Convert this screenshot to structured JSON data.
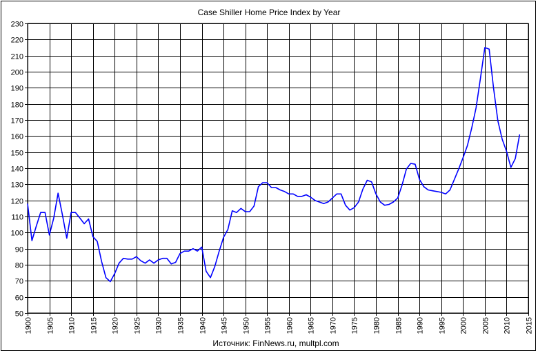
{
  "chart_data": {
    "type": "line",
    "title": "Case Shiller Home Price Index  by Year",
    "source": "Источник: FinNews.ru, multpl.com",
    "xlabel": "",
    "ylabel": "",
    "xlim": [
      1900,
      2015
    ],
    "ylim": [
      50,
      230
    ],
    "x_ticks": [
      1900,
      1905,
      1910,
      1915,
      1920,
      1925,
      1930,
      1935,
      1940,
      1945,
      1950,
      1955,
      1960,
      1965,
      1970,
      1975,
      1980,
      1985,
      1990,
      1995,
      2000,
      2005,
      2010,
      2015
    ],
    "y_ticks": [
      50,
      60,
      70,
      80,
      90,
      100,
      110,
      120,
      130,
      140,
      150,
      160,
      170,
      180,
      190,
      200,
      210,
      220,
      230
    ],
    "grid": true,
    "legend": "none",
    "series": [
      {
        "color": "#0000ff",
        "x": [
          1900,
          1901,
          1902,
          1903,
          1904,
          1905,
          1906,
          1907,
          1908,
          1909,
          1910,
          1911,
          1912,
          1913,
          1914,
          1915,
          1916,
          1917,
          1918,
          1919,
          1920,
          1921,
          1922,
          1923,
          1924,
          1925,
          1926,
          1927,
          1928,
          1929,
          1930,
          1931,
          1932,
          1933,
          1934,
          1935,
          1936,
          1937,
          1938,
          1939,
          1940,
          1941,
          1942,
          1943,
          1944,
          1945,
          1946,
          1947,
          1948,
          1949,
          1950,
          1951,
          1952,
          1953,
          1954,
          1955,
          1956,
          1957,
          1958,
          1959,
          1960,
          1961,
          1962,
          1963,
          1964,
          1965,
          1966,
          1967,
          1968,
          1969,
          1970,
          1971,
          1972,
          1973,
          1974,
          1975,
          1976,
          1977,
          1978,
          1979,
          1980,
          1981,
          1982,
          1983,
          1984,
          1985,
          1986,
          1987,
          1988,
          1989,
          1990,
          1991,
          1992,
          1993,
          1994,
          1995,
          1996,
          1997,
          1998,
          1999,
          2000,
          2001,
          2002,
          2003,
          2004,
          2005,
          2006,
          2007,
          2008,
          2009,
          2010,
          2011,
          2012,
          2013
        ],
        "y": [
          118,
          95,
          104,
          112.5,
          112.5,
          98.5,
          109,
          124.5,
          111,
          96.5,
          112.5,
          112.5,
          109,
          105.5,
          108.5,
          97.5,
          94.5,
          82,
          72,
          69.5,
          74.5,
          81,
          84,
          83.5,
          83.5,
          85,
          82.5,
          81,
          83,
          81,
          83,
          84,
          84,
          80.5,
          81.5,
          87,
          88.5,
          88.5,
          90,
          88.5,
          91,
          76,
          72,
          79,
          88.5,
          97,
          102,
          113.5,
          112.5,
          115,
          113,
          113,
          116.5,
          128.5,
          131,
          131,
          128,
          128,
          126.5,
          125.5,
          124,
          124,
          122.5,
          122.5,
          123.5,
          122,
          120,
          119,
          118,
          119,
          121.5,
          124,
          124,
          117,
          114,
          115.5,
          119,
          127,
          132.5,
          131.5,
          124,
          119,
          117,
          117.5,
          119,
          121.5,
          129.5,
          139.5,
          143,
          142.5,
          133,
          128.5,
          126.5,
          126,
          125.5,
          125,
          124,
          126.5,
          133,
          139.5,
          146.5,
          154,
          165,
          177.5,
          196,
          215,
          214,
          190,
          169.5,
          158,
          150.5,
          140.5,
          146,
          161
        ]
      }
    ]
  }
}
